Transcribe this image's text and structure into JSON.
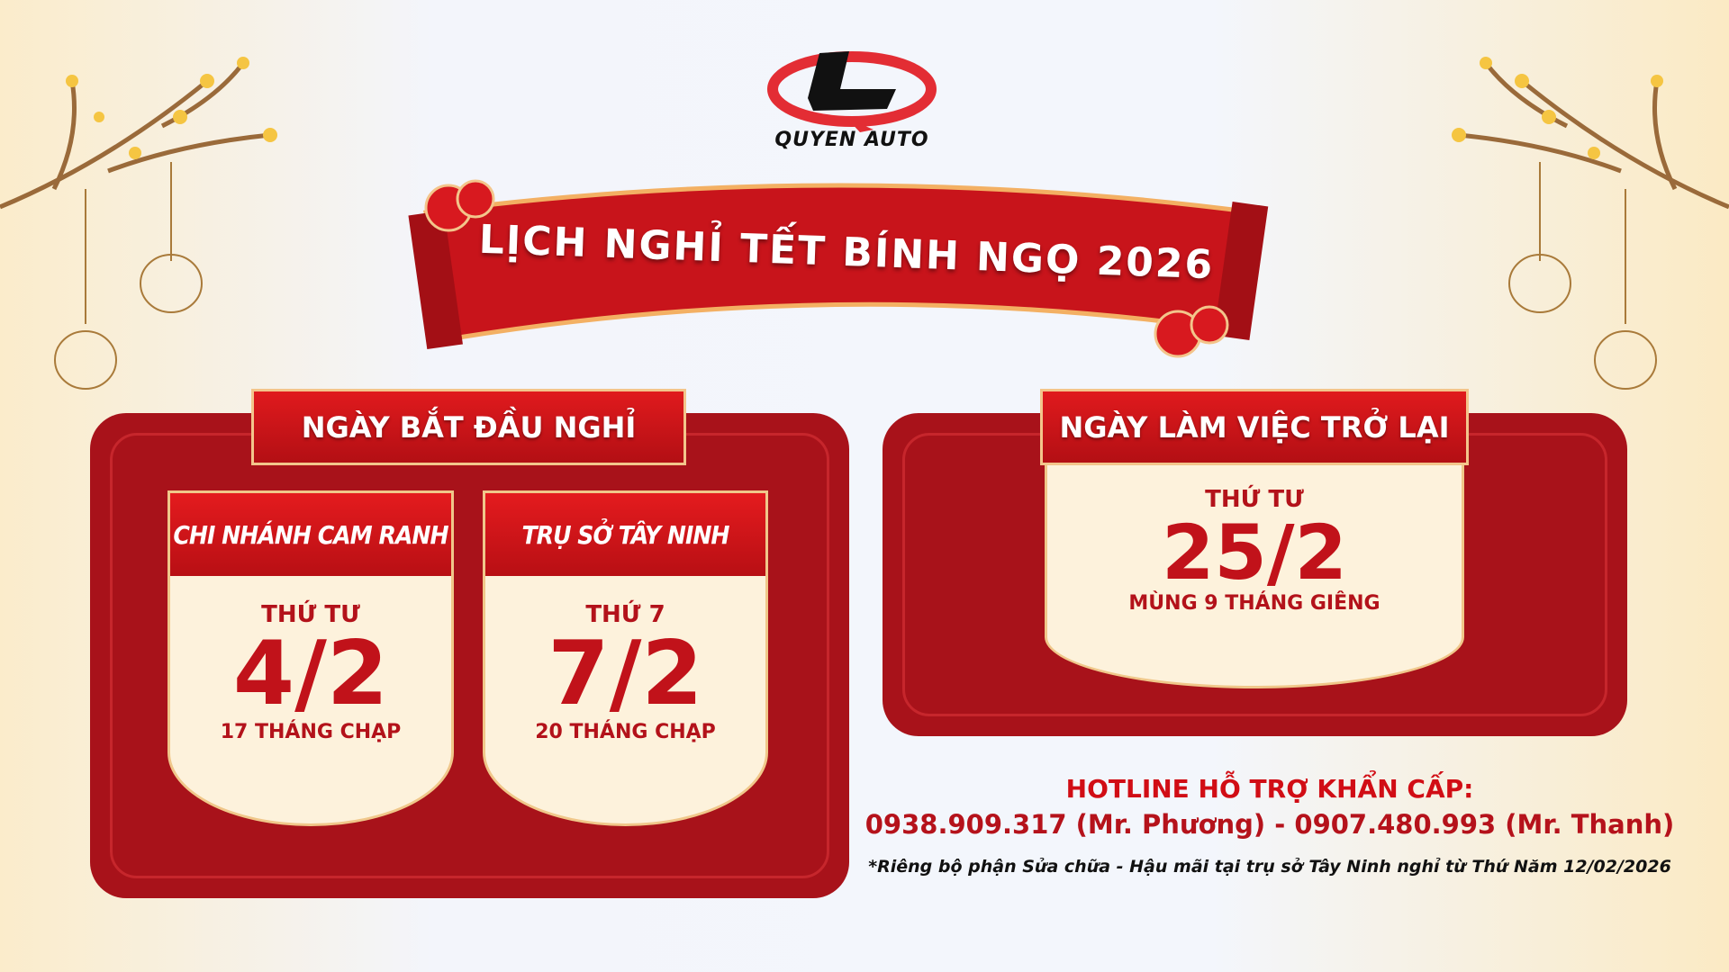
{
  "brand": {
    "name": "QUYEN AUTO",
    "colors": {
      "red": "#e32d34",
      "black": "#111111"
    }
  },
  "title": "LỊCH NGHỈ TẾT BÍNH NGỌ 2026",
  "start": {
    "heading": "NGÀY BẮT ĐẦU NGHỈ",
    "branches": [
      {
        "name": "CHI NHÁNH CAM RANH",
        "weekday": "THỨ TƯ",
        "date": "4/2",
        "lunar": "17 THÁNG CHẠP"
      },
      {
        "name": "TRỤ SỞ TÂY NINH",
        "weekday": "THỨ 7",
        "date": "7/2",
        "lunar": "20 THÁNG CHẠP"
      }
    ]
  },
  "return": {
    "heading": "NGÀY LÀM VIỆC TRỞ LẠI",
    "weekday": "THỨ TƯ",
    "date": "25/2",
    "lunar": "MÙNG 9 THÁNG GIÊNG"
  },
  "hotline": {
    "label": "HOTLINE HỖ TRỢ KHẨN CẤP:",
    "phones": "0938.909.317 (Mr. Phương) - 0907.480.993 (Mr. Thanh)",
    "note": "*Riêng bộ phận Sửa chữa - Hậu mãi tại trụ sở Tây Ninh nghỉ từ Thứ Năm 12/02/2026"
  },
  "decor": [
    "apricot-blossom-branch",
    "lantern-icon",
    "cloud-icon",
    "scroll-banner"
  ],
  "colors": {
    "panel": "#a8121a",
    "accent": "#e01a1d",
    "cream": "#fdf2dc",
    "gold": "#f0c78a"
  }
}
